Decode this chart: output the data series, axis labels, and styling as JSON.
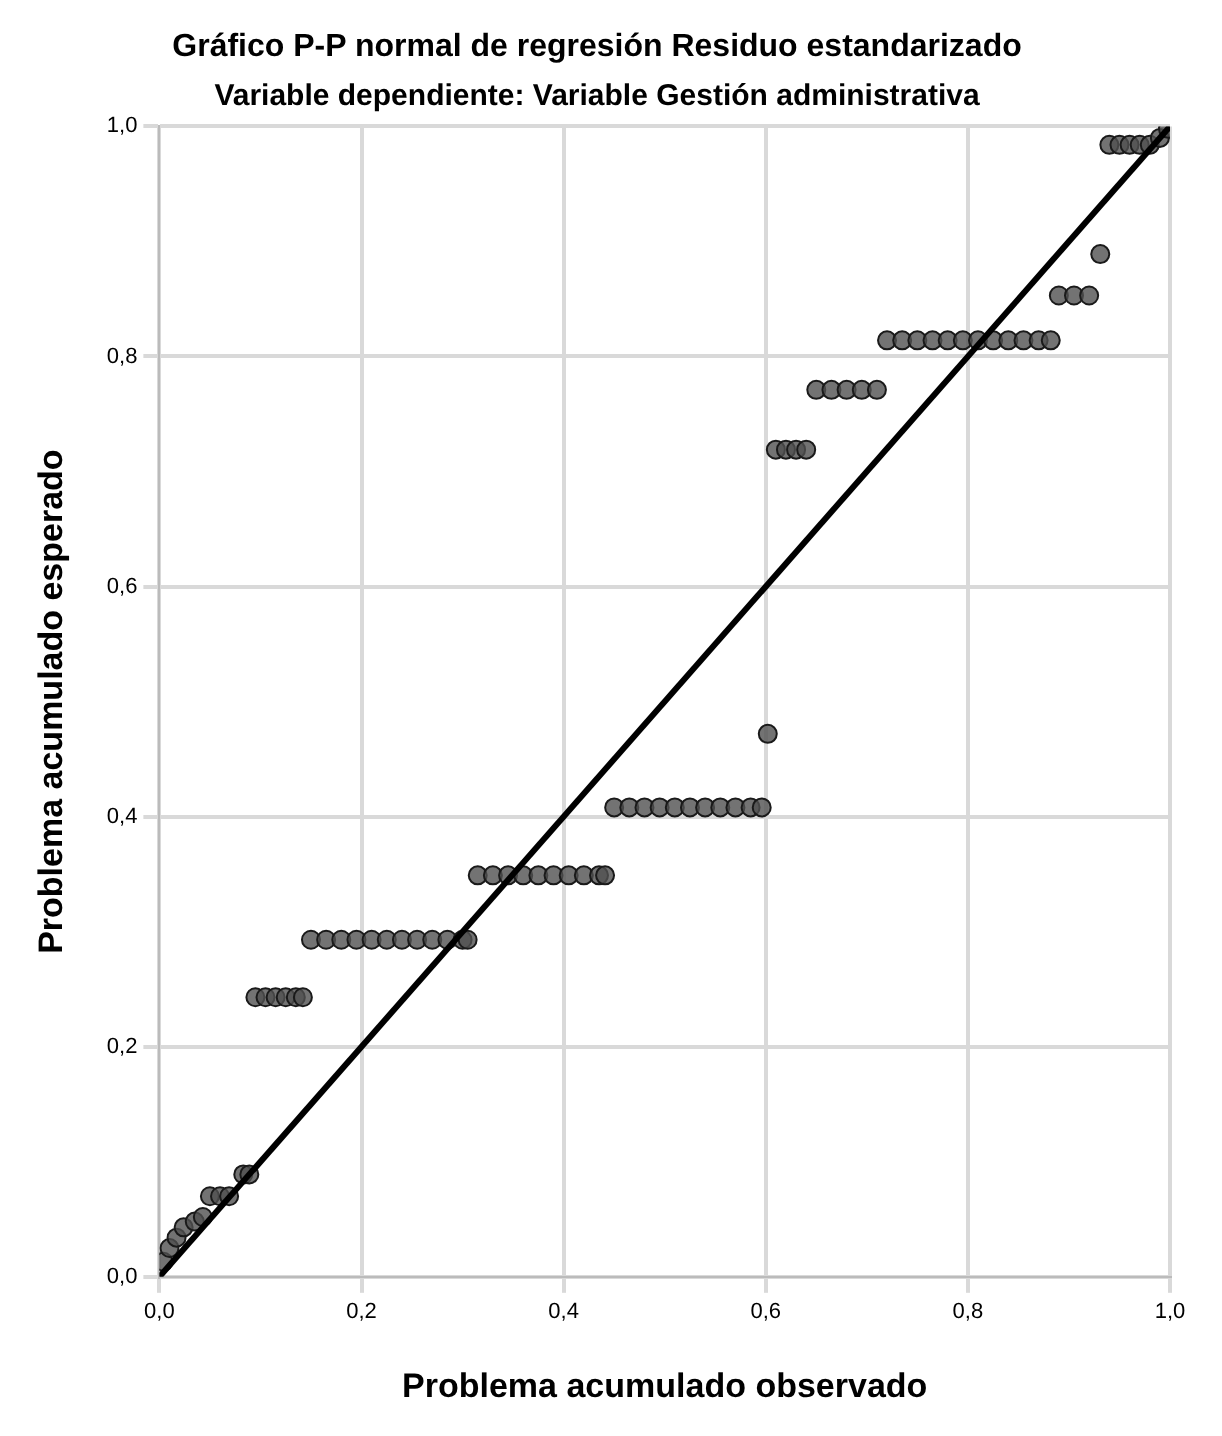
{
  "chart_data": {
    "type": "scatter",
    "title": "Gráfico P-P normal de regresión Residuo estandarizado",
    "subtitle": "Variable dependiente: Variable Gestión administrativa",
    "xlabel": "Problema acumulado observado",
    "ylabel": "Problema acumulado esperado",
    "xlim": [
      0,
      1
    ],
    "ylim": [
      0,
      1
    ],
    "xticks": [
      {
        "value": 0,
        "label": "0,0"
      },
      {
        "value": 0.2,
        "label": "0,2"
      },
      {
        "value": 0.4,
        "label": "0,4"
      },
      {
        "value": 0.6,
        "label": "0,6"
      },
      {
        "value": 0.8,
        "label": "0,8"
      },
      {
        "value": 1,
        "label": "1,0"
      }
    ],
    "yticks": [
      {
        "value": 0,
        "label": "0,0"
      },
      {
        "value": 0.2,
        "label": "0,2"
      },
      {
        "value": 0.4,
        "label": "0,4"
      },
      {
        "value": 0.6,
        "label": "0,6"
      },
      {
        "value": 0.8,
        "label": "0,8"
      },
      {
        "value": 1,
        "label": "1,0"
      }
    ],
    "grid": true,
    "legend": false,
    "marker": "circle",
    "series": [
      {
        "color": "#505050",
        "x": [
          0.004,
          0.01,
          0.017,
          0.024,
          0.035,
          0.043,
          0.05,
          0.06,
          0.069,
          0.083,
          0.089,
          0.095,
          0.105,
          0.115,
          0.125,
          0.135,
          0.142,
          0.15,
          0.165,
          0.18,
          0.195,
          0.21,
          0.225,
          0.24,
          0.255,
          0.27,
          0.285,
          0.3,
          0.305,
          0.315,
          0.33,
          0.345,
          0.36,
          0.375,
          0.39,
          0.405,
          0.42,
          0.435,
          0.441,
          0.45,
          0.465,
          0.48,
          0.495,
          0.51,
          0.525,
          0.54,
          0.555,
          0.57,
          0.585,
          0.596,
          0.602,
          0.61,
          0.62,
          0.63,
          0.64,
          0.65,
          0.665,
          0.68,
          0.695,
          0.71,
          0.72,
          0.735,
          0.75,
          0.765,
          0.78,
          0.795,
          0.81,
          0.825,
          0.84,
          0.855,
          0.87,
          0.882,
          0.89,
          0.905,
          0.92,
          0.931,
          0.94,
          0.95,
          0.96,
          0.97,
          0.98,
          0.99,
          0.998
        ],
        "values": [
          0.013,
          0.025,
          0.034,
          0.043,
          0.048,
          0.052,
          0.07,
          0.07,
          0.07,
          0.089,
          0.089,
          0.243,
          0.243,
          0.243,
          0.243,
          0.243,
          0.243,
          0.293,
          0.293,
          0.293,
          0.293,
          0.293,
          0.293,
          0.293,
          0.293,
          0.293,
          0.293,
          0.293,
          0.293,
          0.349,
          0.349,
          0.349,
          0.349,
          0.349,
          0.349,
          0.349,
          0.349,
          0.349,
          0.349,
          0.408,
          0.408,
          0.408,
          0.408,
          0.408,
          0.408,
          0.408,
          0.408,
          0.408,
          0.408,
          0.408,
          0.472,
          0.719,
          0.719,
          0.719,
          0.719,
          0.771,
          0.771,
          0.771,
          0.771,
          0.771,
          0.814,
          0.814,
          0.814,
          0.814,
          0.814,
          0.814,
          0.814,
          0.814,
          0.814,
          0.814,
          0.814,
          0.814,
          0.853,
          0.853,
          0.853,
          0.889,
          0.984,
          0.984,
          0.984,
          0.984,
          0.984,
          0.99,
          0.998
        ]
      },
      {
        "type": "line",
        "color": "#000000",
        "marker": "none",
        "line_style": "solid",
        "x": [
          0,
          1
        ],
        "values": [
          0,
          1
        ]
      }
    ]
  }
}
